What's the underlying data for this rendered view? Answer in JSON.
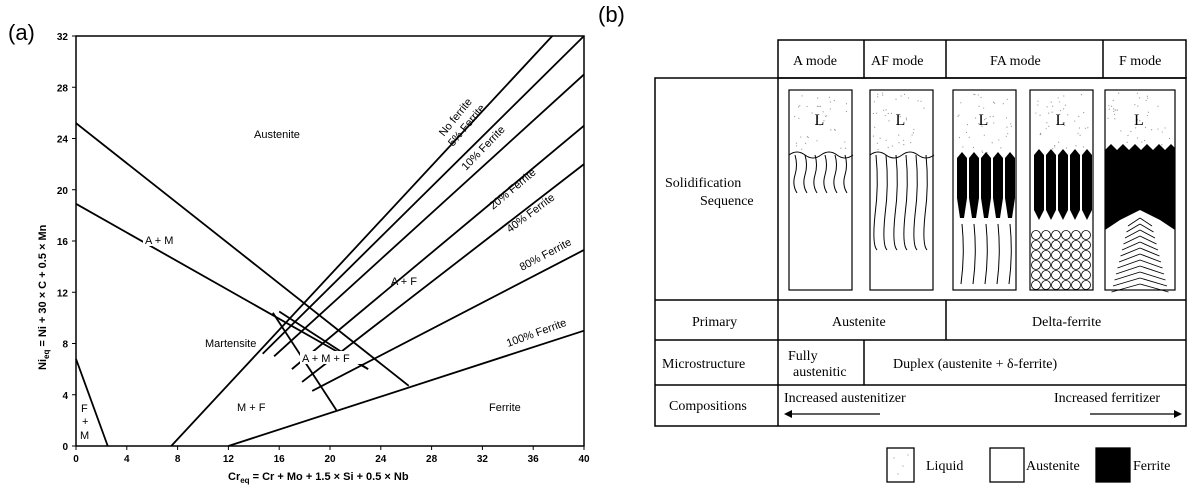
{
  "panel_a": {
    "label": "(a)",
    "xlabel_main": "Cr",
    "xlabel_sub": "eq",
    "xlabel_rest": " = Cr + Mo + 1.5 × Si + 0.5 × Nb",
    "ylabel_main": "Ni",
    "ylabel_sub": "eq",
    "ylabel_rest": " = Ni + 30 × C + 0.5 × Mn",
    "regions": {
      "austenite": "Austenite",
      "martensite": "Martensite",
      "a_m": "A + M",
      "a_f": "A + F",
      "a_m_f": "A + M + F",
      "m_f": "M + F",
      "ferrite": "Ferrite",
      "f_m_f": "F",
      "f_m_plus": "+",
      "f_m_m": "M"
    },
    "ferrite_labels": [
      "No ferrite",
      "5% Ferrite",
      "10% Ferrite",
      "20% Ferrite",
      "40% Ferrite",
      "80% Ferrite",
      "100% Ferrite"
    ]
  },
  "chart_data": {
    "type": "line",
    "xlabel": "Cr_eq = Cr + Mo + 1.5 × Si + 0.5 × Nb",
    "ylabel": "Ni_eq = Ni + 30 × C + 0.5 × Mn",
    "xlim": [
      0,
      40
    ],
    "ylim": [
      0,
      32
    ],
    "xticks": [
      0,
      4,
      8,
      12,
      16,
      20,
      24,
      28,
      32,
      36,
      40
    ],
    "yticks": [
      0,
      4,
      8,
      12,
      16,
      20,
      24,
      28,
      32
    ],
    "series": [
      {
        "name": "No ferrite",
        "x": [
          7.5,
          37.5
        ],
        "y": [
          0,
          32
        ]
      },
      {
        "name": "5% Ferrite",
        "x": [
          14.7,
          40
        ],
        "y": [
          7.2,
          32
        ]
      },
      {
        "name": "10% Ferrite",
        "x": [
          15.6,
          40
        ],
        "y": [
          7.0,
          29
        ]
      },
      {
        "name": "20% Ferrite",
        "x": [
          17.0,
          40
        ],
        "y": [
          6.0,
          25
        ]
      },
      {
        "name": "40% Ferrite",
        "x": [
          17.8,
          40
        ],
        "y": [
          5.0,
          22
        ]
      },
      {
        "name": "80% Ferrite",
        "x": [
          18.6,
          40
        ],
        "y": [
          4.3,
          15.3
        ]
      },
      {
        "name": "100% Ferrite",
        "x": [
          12.0,
          40
        ],
        "y": [
          0,
          9
        ]
      },
      {
        "x": [
          0,
          26.2
        ],
        "y": [
          25.2,
          4.7
        ]
      },
      {
        "x": [
          0,
          23.0
        ],
        "y": [
          18.9,
          6.0
        ]
      },
      {
        "x": [
          16.0,
          23.0
        ],
        "y": [
          10.5,
          6.0
        ]
      },
      {
        "x": [
          15.5,
          20.5
        ],
        "y": [
          10.4,
          2.8
        ]
      },
      {
        "x": [
          0,
          2.5
        ],
        "y": [
          6.8,
          0
        ]
      }
    ]
  },
  "panel_b": {
    "label": "(b)",
    "modes": [
      "A mode",
      "AF mode",
      "FA mode",
      "F mode"
    ],
    "row_solidification_1": "Solidification",
    "row_solidification_2": "Sequence",
    "liquid_letter": "L",
    "row_primary": "Primary",
    "primary_austenite": "Austenite",
    "primary_delta": "Delta-ferrite",
    "row_microstructure": "Microstructure",
    "fully_1": "Fully",
    "fully_2": "austenitic",
    "duplex": "Duplex (austenite + δ-ferrite)",
    "row_compositions": "Compositions",
    "increased_austenitizer": "Increased austenitizer",
    "increased_ferritizer": "Increased ferritizer",
    "legend": [
      "Liquid",
      "Austenite",
      "Ferrite"
    ]
  }
}
